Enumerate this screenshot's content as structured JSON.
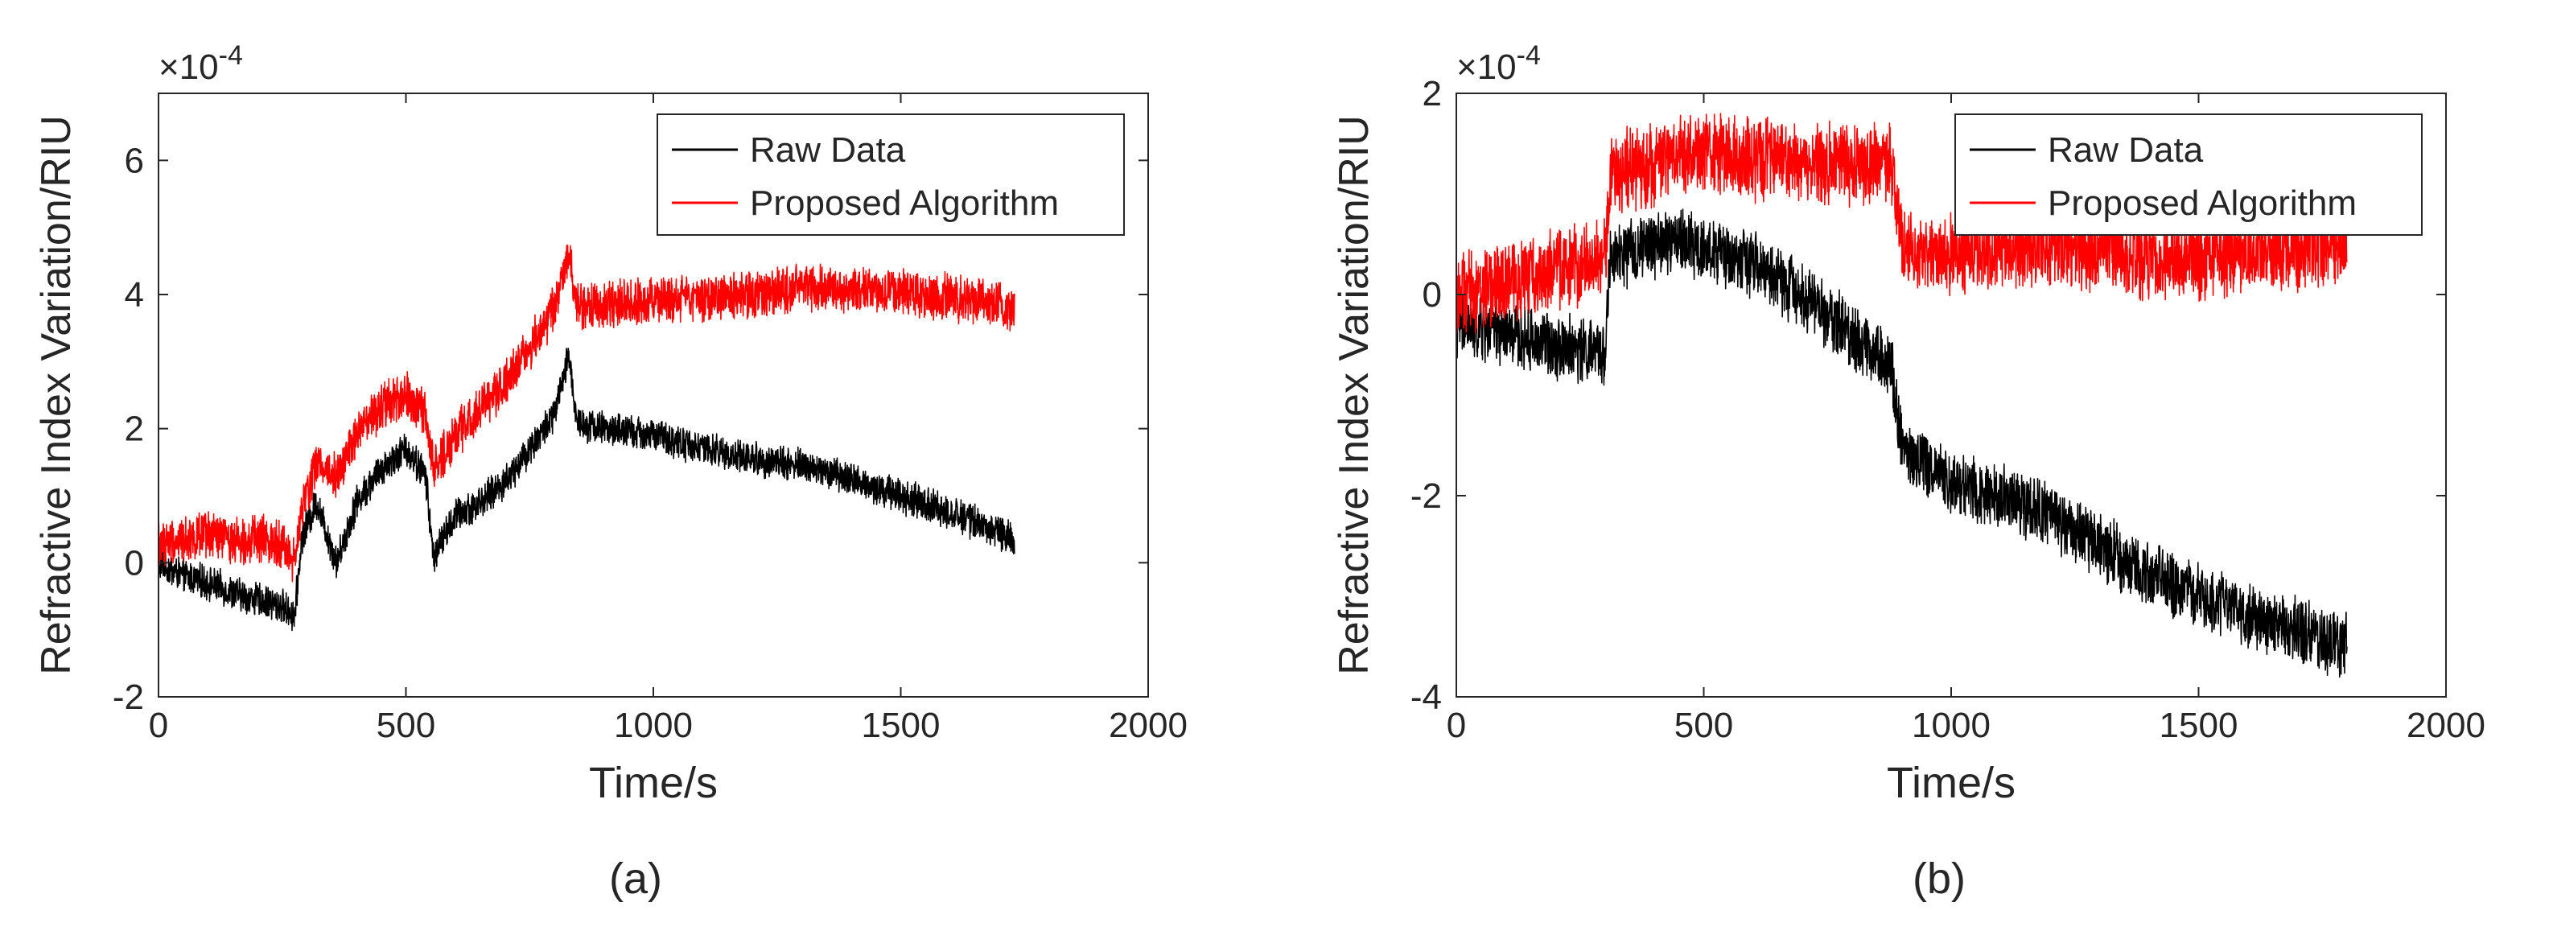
{
  "figure": {
    "panels": [
      "a",
      "b"
    ]
  },
  "colors": {
    "raw": "#000000",
    "proposed": "#ff0000",
    "axis": "#262626",
    "box": "#262626"
  },
  "chart_data": [
    {
      "type": "line",
      "panel_label": "(a)",
      "title": "",
      "xlabel": "Time/s",
      "ylabel": "Refractive Index Variation/RIU",
      "exponent_label": "×10",
      "exponent_power": "-4",
      "xlim": [
        0,
        2000
      ],
      "ylim": [
        -2,
        7
      ],
      "xticks": [
        0,
        500,
        1000,
        1500,
        2000
      ],
      "xtick_labels": [
        "0",
        "500",
        "1000",
        "1500",
        "2000"
      ],
      "yticks": [
        -2,
        0,
        2,
        4,
        6
      ],
      "ytick_labels": [
        "-2",
        "0",
        "2",
        "4",
        "6"
      ],
      "legend_position": "top-right",
      "series": [
        {
          "name": "Raw Data",
          "color": "#000000",
          "noise": 0.22,
          "x": [
            0,
            50,
            100,
            150,
            200,
            250,
            275,
            290,
            320,
            360,
            400,
            450,
            500,
            540,
            555,
            600,
            650,
            700,
            750,
            800,
            830,
            845,
            900,
            1000,
            1100,
            1200,
            1300,
            1400,
            1500,
            1600,
            1700,
            1730
          ],
          "y": [
            0.0,
            -0.2,
            -0.3,
            -0.45,
            -0.55,
            -0.65,
            -0.8,
            0.4,
            0.9,
            0.0,
            0.9,
            1.4,
            1.7,
            1.3,
            0.1,
            0.7,
            0.9,
            1.2,
            1.7,
            2.2,
            3.1,
            2.1,
            2.0,
            1.9,
            1.7,
            1.55,
            1.45,
            1.25,
            1.0,
            0.75,
            0.45,
            0.3
          ]
        },
        {
          "name": "Proposed Algorithm",
          "color": "#ff0000",
          "noise": 0.3,
          "x": [
            0,
            50,
            100,
            150,
            200,
            250,
            275,
            290,
            320,
            360,
            400,
            450,
            500,
            540,
            555,
            600,
            650,
            700,
            750,
            800,
            830,
            845,
            900,
            1000,
            1100,
            1200,
            1300,
            1400,
            1500,
            1600,
            1700,
            1730
          ],
          "y": [
            0.3,
            0.35,
            0.4,
            0.35,
            0.35,
            0.3,
            0.0,
            0.8,
            1.5,
            1.3,
            1.9,
            2.3,
            2.5,
            2.2,
            1.4,
            1.9,
            2.3,
            2.7,
            3.2,
            3.8,
            4.6,
            3.8,
            3.85,
            3.9,
            3.95,
            4.0,
            4.1,
            4.05,
            4.05,
            3.95,
            3.85,
            3.75
          ]
        }
      ]
    },
    {
      "type": "line",
      "panel_label": "(b)",
      "title": "",
      "xlabel": "Time/s",
      "ylabel": "Refractive Index Variation/RIU",
      "exponent_label": "×10",
      "exponent_power": "-4",
      "xlim": [
        0,
        2000
      ],
      "ylim": [
        -4,
        2
      ],
      "xticks": [
        0,
        500,
        1000,
        1500,
        2000
      ],
      "xtick_labels": [
        "0",
        "500",
        "1000",
        "1500",
        "2000"
      ],
      "yticks": [
        -4,
        -2,
        0,
        2
      ],
      "ytick_labels": [
        "-4",
        "-2",
        "0",
        "2"
      ],
      "legend_position": "top-right",
      "series": [
        {
          "name": "Raw Data",
          "color": "#000000",
          "noise": 0.28,
          "x": [
            0,
            50,
            100,
            150,
            200,
            250,
            300,
            310,
            320,
            400,
            450,
            500,
            600,
            700,
            800,
            880,
            900,
            920,
            1000,
            1100,
            1200,
            1300,
            1400,
            1500,
            1600,
            1700,
            1800
          ],
          "y": [
            -0.3,
            -0.35,
            -0.4,
            -0.45,
            -0.5,
            -0.55,
            -0.6,
            0.3,
            0.35,
            0.5,
            0.55,
            0.45,
            0.3,
            0.0,
            -0.4,
            -0.7,
            -1.5,
            -1.6,
            -1.85,
            -2.0,
            -2.2,
            -2.5,
            -2.8,
            -3.0,
            -3.2,
            -3.35,
            -3.5
          ]
        },
        {
          "name": "Proposed Algorithm",
          "color": "#ff0000",
          "noise": 0.35,
          "x": [
            0,
            50,
            100,
            150,
            200,
            250,
            300,
            310,
            320,
            400,
            450,
            500,
            600,
            700,
            800,
            880,
            900,
            920,
            1000,
            1100,
            1200,
            1300,
            1400,
            1500,
            1600,
            1700,
            1800
          ],
          "y": [
            0.0,
            0.05,
            0.1,
            0.2,
            0.25,
            0.3,
            0.35,
            1.1,
            1.2,
            1.3,
            1.4,
            1.4,
            1.35,
            1.3,
            1.3,
            1.3,
            0.5,
            0.45,
            0.4,
            0.45,
            0.5,
            0.45,
            0.35,
            0.35,
            0.4,
            0.45,
            0.5
          ]
        }
      ]
    }
  ]
}
